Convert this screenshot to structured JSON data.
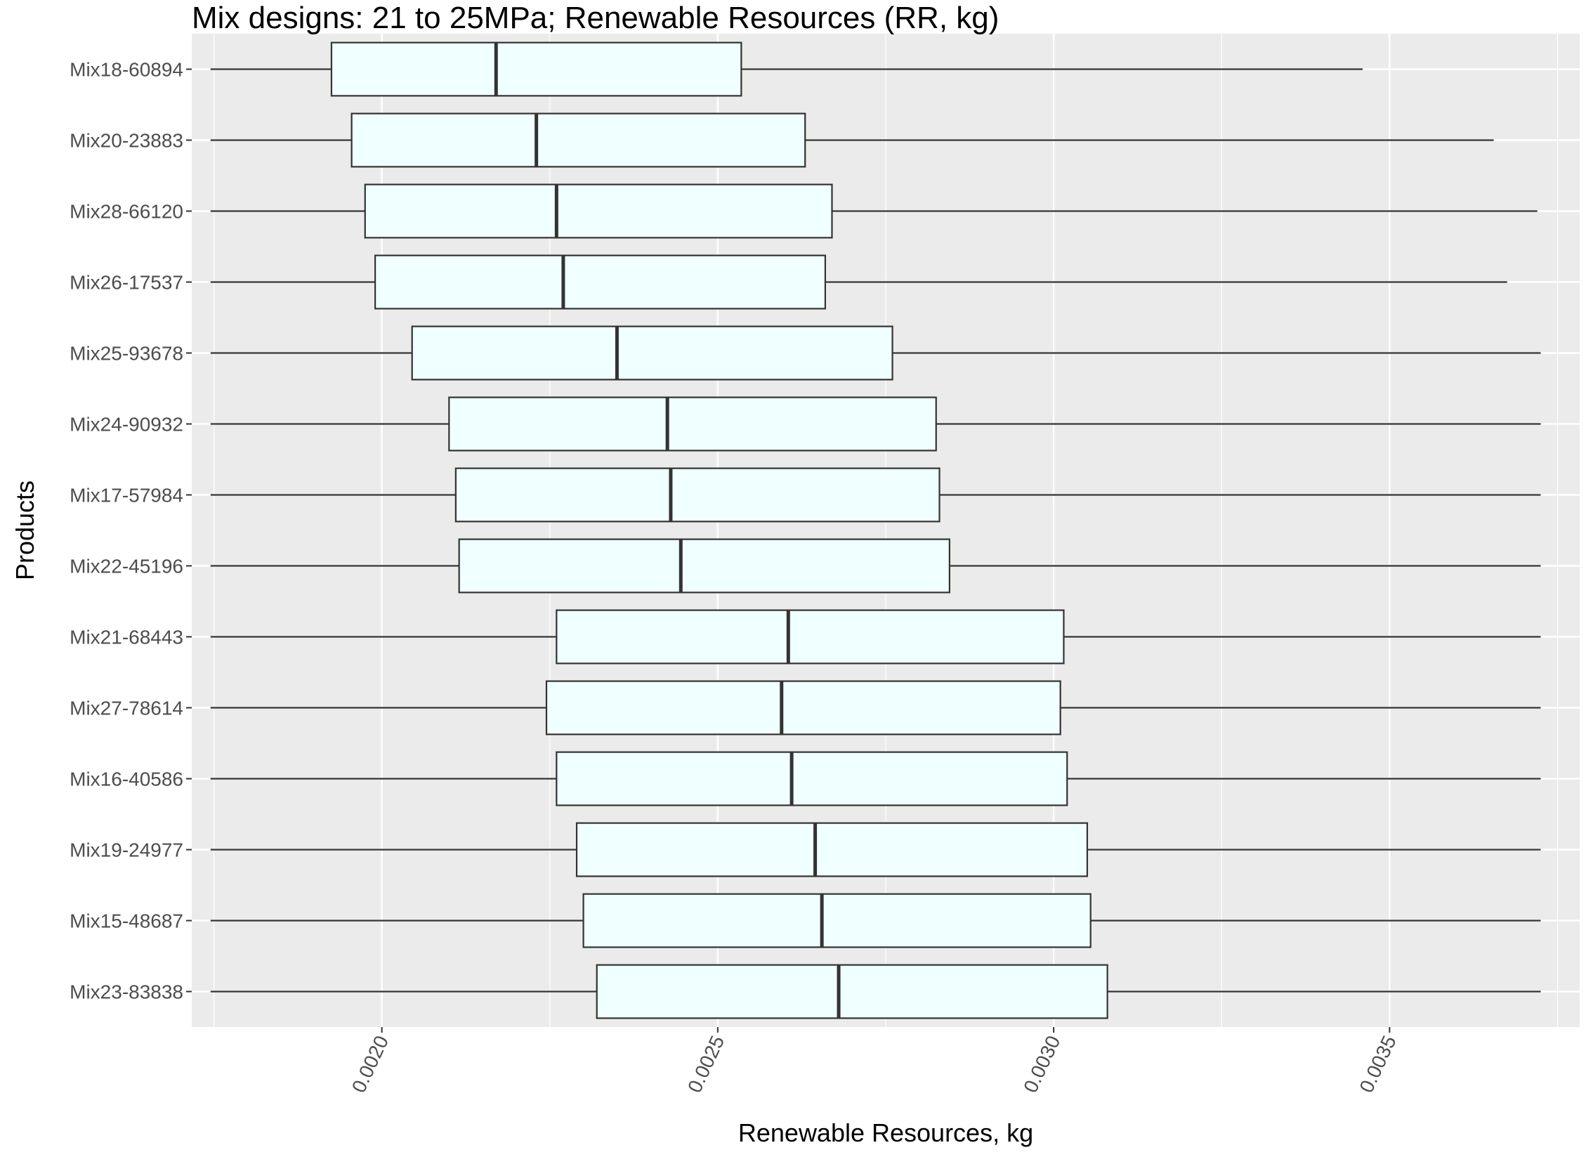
{
  "chart_data": {
    "type": "boxplot",
    "title": "Mix designs: 21 to 25MPa; Renewable Resources (RR, kg)",
    "xlabel": "Renewable Resources, kg",
    "ylabel": "Products",
    "xlim": [
      0.001717,
      0.003783
    ],
    "x_ticks": [
      "0.0020",
      "0.0025",
      "0.0030",
      "0.0035"
    ],
    "x_tick_values": [
      0.002,
      0.0025,
      0.003,
      0.0035
    ],
    "grid": true,
    "box_fill": "#F0FFFF",
    "panel_color": "#EBEBEB",
    "categories": [
      "Mix18-60894",
      "Mix20-23883",
      "Mix28-66120",
      "Mix26-17537",
      "Mix25-93678",
      "Mix24-90932",
      "Mix17-57984",
      "Mix22-45196",
      "Mix21-68443",
      "Mix27-78614",
      "Mix16-40586",
      "Mix19-24977",
      "Mix15-48687",
      "Mix23-83838"
    ],
    "boxes": [
      {
        "label": "Mix18-60894",
        "min": 0.001745,
        "q1": 0.001925,
        "median": 0.00217,
        "q3": 0.002535,
        "max": 0.00346
      },
      {
        "label": "Mix20-23883",
        "min": 0.001745,
        "q1": 0.001955,
        "median": 0.00223,
        "q3": 0.00263,
        "max": 0.003655
      },
      {
        "label": "Mix28-66120",
        "min": 0.001745,
        "q1": 0.001975,
        "median": 0.00226,
        "q3": 0.00267,
        "max": 0.00372
      },
      {
        "label": "Mix26-17537",
        "min": 0.001745,
        "q1": 0.00199,
        "median": 0.00227,
        "q3": 0.00266,
        "max": 0.003675
      },
      {
        "label": "Mix25-93678",
        "min": 0.001745,
        "q1": 0.002045,
        "median": 0.00235,
        "q3": 0.00276,
        "max": 0.003725
      },
      {
        "label": "Mix24-90932",
        "min": 0.001745,
        "q1": 0.0021,
        "median": 0.002425,
        "q3": 0.002825,
        "max": 0.003725
      },
      {
        "label": "Mix17-57984",
        "min": 0.001745,
        "q1": 0.00211,
        "median": 0.00243,
        "q3": 0.00283,
        "max": 0.003725
      },
      {
        "label": "Mix22-45196",
        "min": 0.001745,
        "q1": 0.002115,
        "median": 0.002445,
        "q3": 0.002845,
        "max": 0.003725
      },
      {
        "label": "Mix21-68443",
        "min": 0.001745,
        "q1": 0.00226,
        "median": 0.002605,
        "q3": 0.003015,
        "max": 0.003725
      },
      {
        "label": "Mix27-78614",
        "min": 0.001745,
        "q1": 0.002245,
        "median": 0.002595,
        "q3": 0.00301,
        "max": 0.003725
      },
      {
        "label": "Mix16-40586",
        "min": 0.001745,
        "q1": 0.00226,
        "median": 0.00261,
        "q3": 0.00302,
        "max": 0.003725
      },
      {
        "label": "Mix19-24977",
        "min": 0.001745,
        "q1": 0.00229,
        "median": 0.002645,
        "q3": 0.00305,
        "max": 0.003725
      },
      {
        "label": "Mix15-48687",
        "min": 0.001745,
        "q1": 0.0023,
        "median": 0.002655,
        "q3": 0.003055,
        "max": 0.003725
      },
      {
        "label": "Mix23-83838",
        "min": 0.001745,
        "q1": 0.00232,
        "median": 0.00268,
        "q3": 0.00308,
        "max": 0.003725
      }
    ]
  }
}
